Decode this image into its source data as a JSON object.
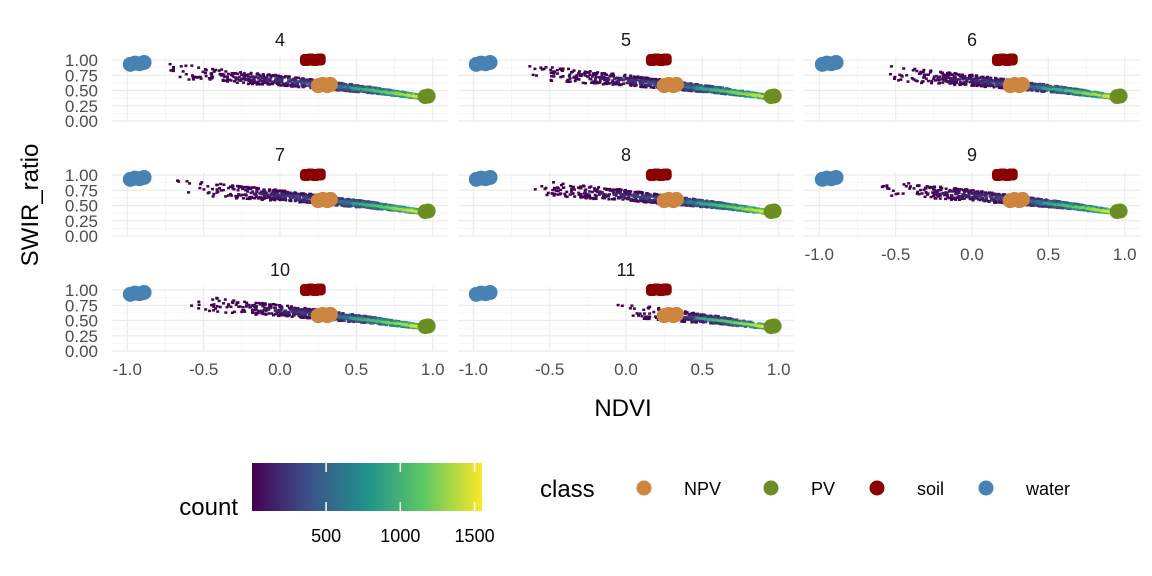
{
  "chart_data": {
    "type": "heatmap",
    "title": "",
    "xlabel": "NDVI",
    "ylabel": "SWIR_ratio",
    "xlim": [
      -1.1,
      1.1
    ],
    "ylim": [
      0.0,
      1.05
    ],
    "x_ticks": [
      -1.0,
      -0.5,
      0.0,
      0.5,
      1.0
    ],
    "x_tick_labels": [
      "-1.0",
      "-0.5",
      "0.0",
      "0.5",
      "1.0"
    ],
    "y_ticks": [
      0.0,
      0.25,
      0.5,
      0.75,
      1.0
    ],
    "y_tick_labels": [
      "0.00",
      "0.25",
      "0.50",
      "0.75",
      "1.00"
    ],
    "grid": true,
    "facet_variable": "month",
    "facets": [
      {
        "label": "4",
        "density_x_range": [
          -0.75,
          0.95
        ],
        "x_start": -0.75
      },
      {
        "label": "5",
        "density_x_range": [
          -0.7,
          0.95
        ],
        "x_start": -0.7
      },
      {
        "label": "6",
        "density_x_range": [
          -0.65,
          0.95
        ],
        "x_start": -0.65
      },
      {
        "label": "7",
        "density_x_range": [
          -0.7,
          0.95
        ],
        "x_start": -0.7
      },
      {
        "label": "8",
        "density_x_range": [
          -0.7,
          0.95
        ],
        "x_start": -0.7
      },
      {
        "label": "9",
        "density_x_range": [
          -0.65,
          0.95
        ],
        "x_start": -0.65
      },
      {
        "label": "10",
        "density_x_range": [
          -0.6,
          0.95
        ],
        "x_start": -0.6
      },
      {
        "label": "11",
        "density_x_range": [
          -0.1,
          0.95
        ],
        "x_start": -0.1
      }
    ],
    "density_ridge": {
      "x": [
        -0.7,
        -0.3,
        0.0,
        0.3,
        0.6,
        0.95
      ],
      "y": [
        0.82,
        0.72,
        0.66,
        0.58,
        0.5,
        0.38
      ]
    },
    "endmembers": [
      {
        "class": "NPV",
        "color": "#CD853F",
        "points": [
          {
            "x": 0.25,
            "y": 0.58
          },
          {
            "x": 0.28,
            "y": 0.6
          },
          {
            "x": 0.31,
            "y": 0.58
          },
          {
            "x": 0.33,
            "y": 0.6
          }
        ]
      },
      {
        "class": "PV",
        "color": "#6B8E23",
        "points": [
          {
            "x": 0.95,
            "y": 0.4
          },
          {
            "x": 0.97,
            "y": 0.41
          }
        ]
      },
      {
        "class": "soil",
        "color": "#8B0000",
        "points": [
          {
            "x": 0.17,
            "y": 1.0
          },
          {
            "x": 0.2,
            "y": 1.01
          },
          {
            "x": 0.23,
            "y": 1.0
          },
          {
            "x": 0.26,
            "y": 1.01
          }
        ]
      },
      {
        "class": "water",
        "color": "#4682B4",
        "points": [
          {
            "x": -0.98,
            "y": 0.93
          },
          {
            "x": -0.95,
            "y": 0.95
          },
          {
            "x": -0.92,
            "y": 0.94
          },
          {
            "x": -0.89,
            "y": 0.96
          }
        ]
      }
    ],
    "colorbar": {
      "title": "count",
      "ticks": [
        500,
        1000,
        1500
      ],
      "tick_labels": [
        "500",
        "1000",
        "1500"
      ],
      "range": [
        1,
        1550
      ],
      "palette": [
        "#440154",
        "#3b528b",
        "#21918c",
        "#5ec962",
        "#fde725"
      ]
    },
    "legend": {
      "title": "class",
      "placement": "bottom",
      "entries": [
        {
          "label": "NPV",
          "color": "#CD853F"
        },
        {
          "label": "PV",
          "color": "#6B8E23"
        },
        {
          "label": "soil",
          "color": "#8B0000"
        },
        {
          "label": "water",
          "color": "#4682B4"
        }
      ]
    }
  }
}
